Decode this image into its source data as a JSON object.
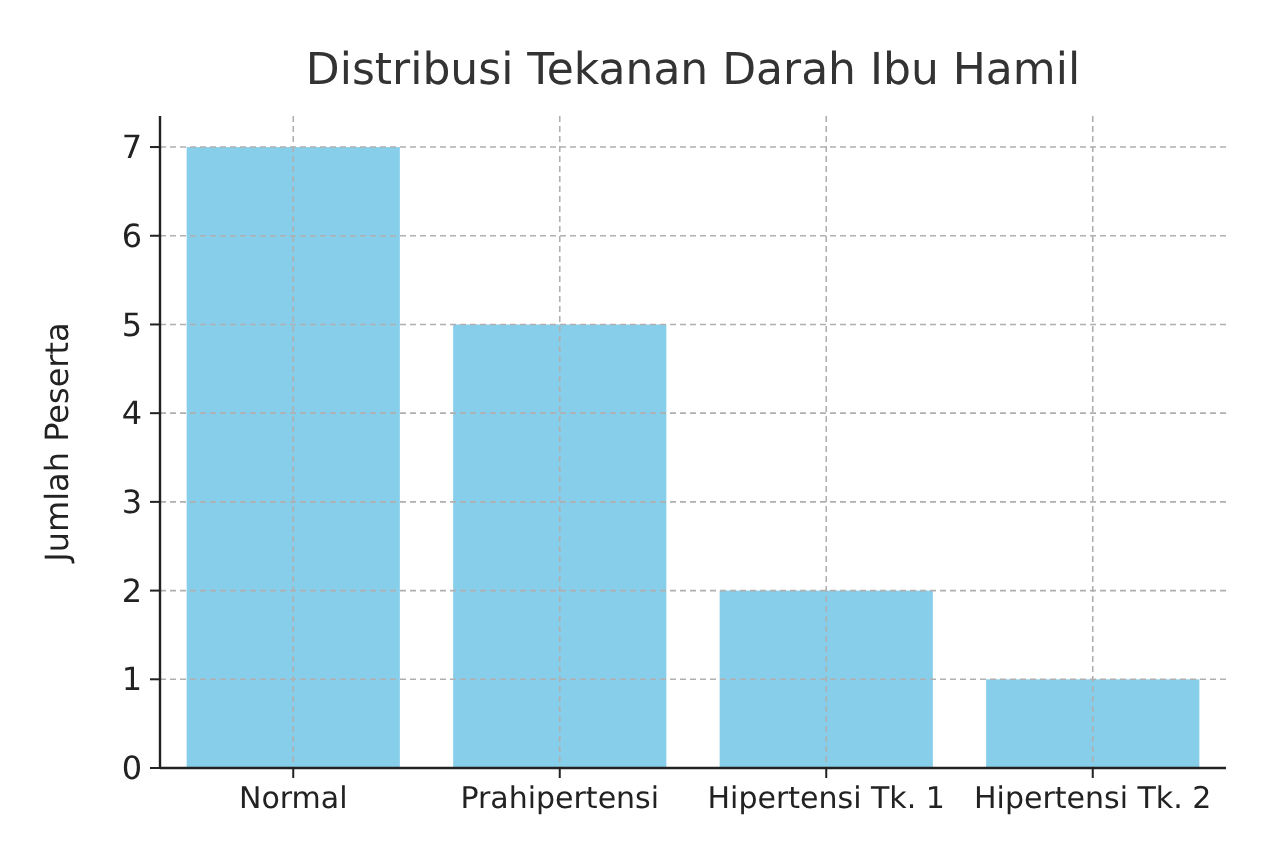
{
  "chart_data": {
    "type": "bar",
    "title": "Distribusi Tekanan Darah Ibu Hamil",
    "ylabel": "Jumlah Peserta",
    "categories": [
      "Normal",
      "Prahipertensi",
      "Hipertensi Tk. 1",
      "Hipertensi Tk. 2"
    ],
    "values": [
      7,
      5,
      2,
      1
    ],
    "color": "#87ceeb",
    "ylim": [
      0,
      7.35
    ],
    "yticks": [
      0,
      1,
      2,
      3,
      4,
      5,
      6,
      7
    ],
    "grid": true
  }
}
